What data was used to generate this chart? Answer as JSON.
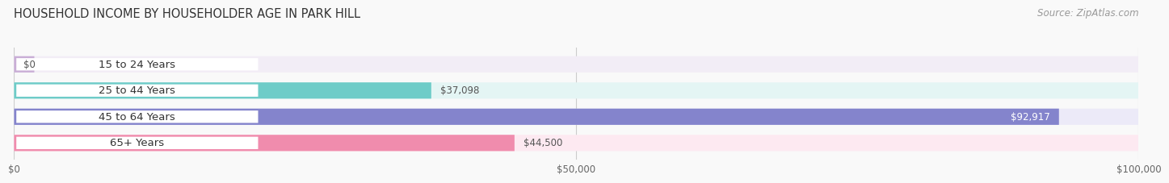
{
  "title": "HOUSEHOLD INCOME BY HOUSEHOLDER AGE IN PARK HILL",
  "source": "Source: ZipAtlas.com",
  "categories": [
    "15 to 24 Years",
    "25 to 44 Years",
    "45 to 64 Years",
    "65+ Years"
  ],
  "values": [
    0,
    37098,
    92917,
    44500
  ],
  "bar_colors": [
    "#c9aed6",
    "#6eccc8",
    "#8484cc",
    "#f08cad"
  ],
  "bg_colors": [
    "#f2edf6",
    "#e4f5f4",
    "#eceaf8",
    "#fde9f1"
  ],
  "xlim": [
    0,
    100000
  ],
  "xticks": [
    0,
    50000,
    100000
  ],
  "xtick_labels": [
    "$0",
    "$50,000",
    "$100,000"
  ],
  "value_labels": [
    "$0",
    "$37,098",
    "$92,917",
    "$44,500"
  ],
  "title_fontsize": 10.5,
  "label_fontsize": 9.5,
  "value_fontsize": 8.5,
  "source_fontsize": 8.5,
  "background_color": "#f9f9f9"
}
